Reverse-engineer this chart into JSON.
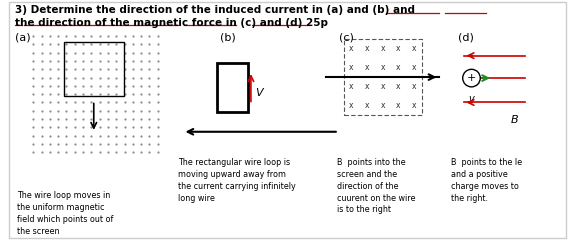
{
  "title_line1": "3) Determine the direction of the induced current in (a) and (b) and",
  "title_line2": "the direction of the magnetic force in (c) and (d) 25p",
  "bg_color": "#ffffff",
  "text_color": "#000000",
  "label_a": "(a)",
  "label_b": "(b)",
  "label_c": "(c)",
  "label_d": "(d)",
  "desc_a": "The wire loop moves in\nthe uniform magnetic\nfield which points out of\nthe screen",
  "desc_b": "The rectangular wire loop is\nmoving upward away from\nthe current carrying infinitely\nlong wire",
  "desc_c": "B  points into the\nscreen and the\ndirection of the\ncuurent on the wire\nis to the right",
  "desc_d": "B  points to the le\nand a positive\ncharge moves to\nthe right.",
  "red_color": "#cc0000",
  "green_color": "#228B22",
  "arrow_color": "#000000",
  "dot_color": "#888888",
  "x_color": "#333333",
  "underline_color": "#cc0000",
  "border_color": "#cccccc"
}
